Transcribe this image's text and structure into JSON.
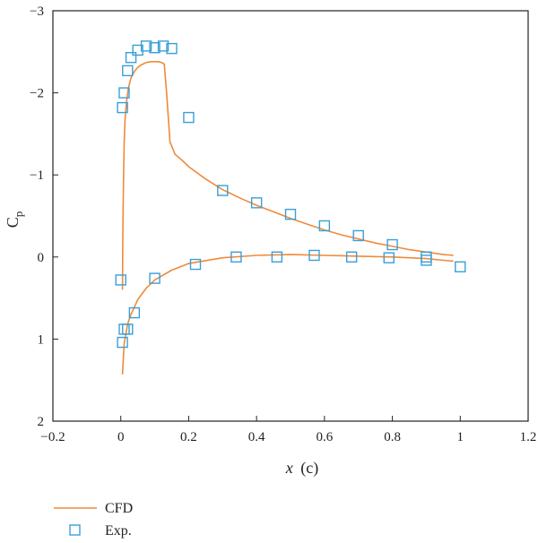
{
  "chart_data": {
    "type": "line",
    "xlabel_main": "x",
    "xlabel_unit": "(c)",
    "ylabel_main": "C",
    "ylabel_sub": "p",
    "xlim": [
      -0.2,
      1.2
    ],
    "ylim": [
      -3,
      2
    ],
    "y_inverted": true,
    "x_ticks": [
      -0.2,
      0,
      0.2,
      0.4,
      0.6,
      0.8,
      1,
      1.2
    ],
    "x_tick_labels": [
      "−0.2",
      "0",
      "0.2",
      "0.4",
      "0.6",
      "0.8",
      "1",
      "1.2"
    ],
    "y_ticks": [
      -3,
      -2,
      -1,
      0,
      1,
      2
    ],
    "y_tick_labels": [
      "−3",
      "−2",
      "−1",
      "0",
      "1",
      "2"
    ],
    "grid": false,
    "legend_position": "bottom-left, below plot",
    "colors": {
      "cfd": "#f08a3a",
      "exp": "#3a9fd8",
      "axis": "#222222"
    },
    "series": [
      {
        "name": "CFD",
        "kind": "line",
        "segments": [
          {
            "x": [
              0.005,
              0.006,
              0.008,
              0.01,
              0.013,
              0.017,
              0.022,
              0.03,
              0.04,
              0.05,
              0.06,
              0.075,
              0.09,
              0.1,
              0.11,
              0.12,
              0.128,
              0.135,
              0.14,
              0.145,
              0.15,
              0.16,
              0.18,
              0.2,
              0.25,
              0.3,
              0.35,
              0.4,
              0.45,
              0.5,
              0.55,
              0.6,
              0.65,
              0.7,
              0.75,
              0.8,
              0.85,
              0.9,
              0.95,
              0.98
            ],
            "y": [
              0.4,
              -0.3,
              -0.9,
              -1.4,
              -1.7,
              -1.9,
              -2.05,
              -2.18,
              -2.26,
              -2.31,
              -2.34,
              -2.37,
              -2.38,
              -2.38,
              -2.38,
              -2.37,
              -2.35,
              -2.0,
              -1.7,
              -1.4,
              -1.35,
              -1.25,
              -1.18,
              -1.1,
              -0.95,
              -0.82,
              -0.72,
              -0.63,
              -0.55,
              -0.47,
              -0.4,
              -0.33,
              -0.27,
              -0.22,
              -0.17,
              -0.13,
              -0.09,
              -0.06,
              -0.03,
              -0.02
            ]
          },
          {
            "x": [
              0.005,
              0.01,
              0.02,
              0.03,
              0.05,
              0.075,
              0.1,
              0.15,
              0.2,
              0.3,
              0.4,
              0.5,
              0.6,
              0.7,
              0.8,
              0.9,
              0.95,
              0.98
            ],
            "y": [
              1.43,
              1.05,
              0.82,
              0.7,
              0.52,
              0.38,
              0.28,
              0.16,
              0.08,
              0.01,
              -0.02,
              -0.03,
              -0.02,
              -0.01,
              0.0,
              0.02,
              0.04,
              0.05
            ]
          }
        ]
      },
      {
        "name": "Exp.",
        "kind": "marker",
        "x": [
          0.0,
          0.005,
          0.01,
          0.02,
          0.03,
          0.05,
          0.075,
          0.1,
          0.125,
          0.15,
          0.2,
          0.3,
          0.4,
          0.5,
          0.6,
          0.7,
          0.8,
          0.9,
          0.005,
          0.01,
          0.02,
          0.04,
          0.1,
          0.22,
          0.34,
          0.46,
          0.57,
          0.68,
          0.79,
          0.9,
          1.0
        ],
        "y": [
          0.28,
          -1.82,
          -2.0,
          -2.27,
          -2.43,
          -2.52,
          -2.57,
          -2.55,
          -2.57,
          -2.54,
          -1.7,
          -0.81,
          -0.66,
          -0.52,
          -0.38,
          -0.26,
          -0.15,
          0.0,
          1.04,
          0.88,
          0.88,
          0.68,
          0.26,
          0.09,
          0.0,
          0.0,
          -0.02,
          0.0,
          0.01,
          0.04,
          0.12
        ]
      }
    ]
  }
}
